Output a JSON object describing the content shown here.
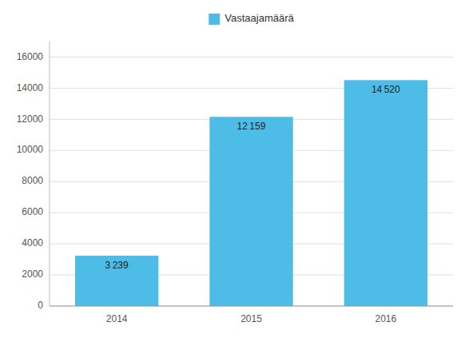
{
  "chart_data": {
    "type": "bar",
    "categories": [
      "2014",
      "2015",
      "2016"
    ],
    "series": [
      {
        "name": "Vastaajamäärä",
        "color": "#4DBDE8",
        "values": [
          3239,
          12159,
          14520
        ],
        "value_labels": [
          "3 239",
          "12 159",
          "14 520"
        ]
      }
    ],
    "ylim": [
      0,
      17000
    ],
    "yticks": [
      0,
      2000,
      4000,
      6000,
      8000,
      10000,
      12000,
      14000,
      16000
    ],
    "grid": true,
    "legend": "top",
    "data_labels": true
  }
}
